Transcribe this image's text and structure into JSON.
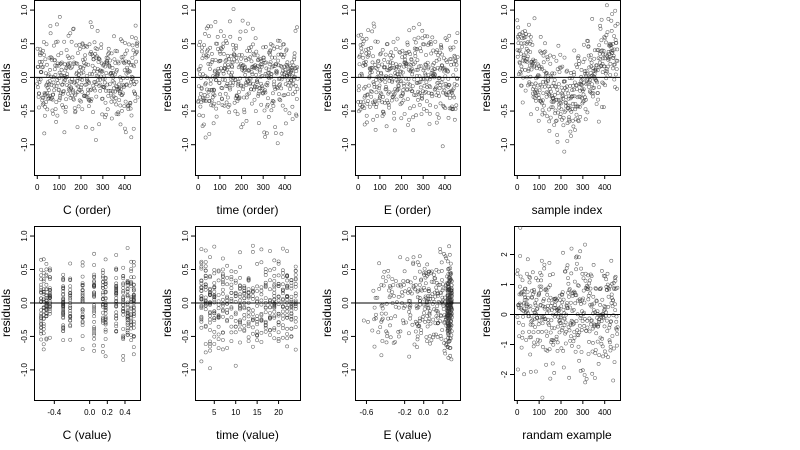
{
  "figure": {
    "layout": "2 rows x 4 columns of residual scatter plots"
  },
  "chart_data": [
    {
      "type": "scatter",
      "xlabel": "C (order)",
      "ylabel": "residuals",
      "xlim": [
        -15,
        470
      ],
      "ylim": [
        -1.45,
        1.15
      ],
      "xticks": [
        0,
        100,
        200,
        300,
        400
      ],
      "xtick_labels": [
        "0",
        "100",
        "200",
        "300",
        "400"
      ],
      "yticks": [
        -1.0,
        -0.5,
        0.0,
        0.5,
        1.0
      ],
      "ytick_labels": [
        "-1.0",
        "-0.5",
        "0.0",
        "0.5",
        "1.0"
      ],
      "hline": 0,
      "points": {
        "generator": "index",
        "n": 460,
        "pattern": "uniform",
        "seed": 11
      }
    },
    {
      "type": "scatter",
      "xlabel": "time (order)",
      "ylabel": "residuals",
      "xlim": [
        -15,
        470
      ],
      "ylim": [
        -1.45,
        1.15
      ],
      "xticks": [
        0,
        100,
        200,
        300,
        400
      ],
      "xtick_labels": [
        "0",
        "100",
        "200",
        "300",
        "400"
      ],
      "yticks": [
        -1.0,
        -0.5,
        0.0,
        0.5,
        1.0
      ],
      "ytick_labels": [
        "-1.0",
        "-0.5",
        "0.0",
        "0.5",
        "1.0"
      ],
      "hline": 0,
      "points": {
        "generator": "index",
        "n": 460,
        "pattern": "uniform",
        "seed": 23
      }
    },
    {
      "type": "scatter",
      "xlabel": "E (order)",
      "ylabel": "residuals",
      "xlim": [
        -15,
        470
      ],
      "ylim": [
        -1.45,
        1.15
      ],
      "xticks": [
        0,
        100,
        200,
        300,
        400
      ],
      "xtick_labels": [
        "0",
        "100",
        "200",
        "300",
        "400"
      ],
      "yticks": [
        -1.0,
        -0.5,
        0.0,
        0.5,
        1.0
      ],
      "ytick_labels": [
        "-1.0",
        "-0.5",
        "0.0",
        "0.5",
        "1.0"
      ],
      "hline": 0,
      "points": {
        "generator": "index",
        "n": 460,
        "pattern": "uniform",
        "seed": 37
      }
    },
    {
      "type": "scatter",
      "xlabel": "sample index",
      "ylabel": "residuals",
      "xlim": [
        -15,
        470
      ],
      "ylim": [
        -1.45,
        1.15
      ],
      "xticks": [
        0,
        100,
        200,
        300,
        400
      ],
      "xtick_labels": [
        "0",
        "100",
        "200",
        "300",
        "400"
      ],
      "yticks": [
        -1.0,
        -0.5,
        0.0,
        0.5,
        1.0
      ],
      "ytick_labels": [
        "-1.0",
        "-0.5",
        "0.0",
        "0.5",
        "1.0"
      ],
      "hline": 0,
      "points": {
        "generator": "index",
        "n": 460,
        "pattern": "trend",
        "seed": 41
      }
    },
    {
      "type": "scatter",
      "xlabel": "C (value)",
      "ylabel": "residuals",
      "xlim": [
        -0.63,
        0.57
      ],
      "ylim": [
        -1.45,
        1.15
      ],
      "xticks": [
        -0.4,
        0.0,
        0.2,
        0.4
      ],
      "xtick_labels": [
        "-0.4",
        "0.0",
        "0.2",
        "0.4"
      ],
      "yticks": [
        -1.0,
        -0.5,
        0.0,
        0.5,
        1.0
      ],
      "ytick_labels": [
        "-1.0",
        "-0.5",
        "0.0",
        "0.5",
        "1.0"
      ],
      "hline": 0,
      "points": {
        "generator": "columns",
        "n": 460,
        "seed": 53,
        "levels": [
          -0.55,
          -0.52,
          -0.49,
          -0.45,
          -0.3,
          -0.22,
          -0.08,
          0.05,
          0.15,
          0.18,
          0.3,
          0.38,
          0.43,
          0.47,
          0.5
        ]
      }
    },
    {
      "type": "scatter",
      "xlabel": "time (value)",
      "ylabel": "residuals",
      "xlim": [
        0.5,
        25
      ],
      "ylim": [
        -1.45,
        1.15
      ],
      "xticks": [
        5,
        10,
        15,
        20
      ],
      "xtick_labels": [
        "5",
        "10",
        "15",
        "20"
      ],
      "yticks": [
        -1.0,
        -0.5,
        0.0,
        0.5,
        1.0
      ],
      "ytick_labels": [
        "-1.0",
        "-0.5",
        "0.0",
        "0.5",
        "1.0"
      ],
      "hline": 0,
      "points": {
        "generator": "columns",
        "n": 460,
        "seed": 67,
        "levels": [
          2,
          3,
          4,
          5,
          6,
          7,
          8,
          9,
          10,
          11,
          12,
          13,
          14,
          15,
          16,
          17,
          18,
          19,
          20,
          21,
          22,
          23,
          24
        ]
      }
    },
    {
      "type": "scatter",
      "xlabel": "E (value)",
      "ylabel": "residuals",
      "xlim": [
        -0.72,
        0.38
      ],
      "ylim": [
        -1.45,
        1.15
      ],
      "xticks": [
        -0.6,
        -0.2,
        0.0,
        0.2
      ],
      "xtick_labels": [
        "-0.6",
        "-0.2",
        "0.0",
        "0.2"
      ],
      "yticks": [
        -1.0,
        -0.5,
        0.0,
        0.5,
        1.0
      ],
      "ytick_labels": [
        "-1.0",
        "-0.5",
        "0.0",
        "0.5",
        "1.0"
      ],
      "hline": 0,
      "points": {
        "generator": "skewed",
        "n": 460,
        "seed": 79
      }
    },
    {
      "type": "scatter",
      "xlabel": "randam example",
      "ylabel": "residuals",
      "xlim": [
        -15,
        470
      ],
      "ylim": [
        -2.85,
        2.95
      ],
      "xticks": [
        0,
        100,
        200,
        300,
        400
      ],
      "xtick_labels": [
        "0",
        "100",
        "200",
        "300",
        "400"
      ],
      "yticks": [
        -2,
        -1,
        0,
        1,
        2
      ],
      "ytick_labels": [
        "-2",
        "-1",
        "0",
        "1",
        "2"
      ],
      "hline": 0,
      "points": {
        "generator": "index",
        "n": 460,
        "pattern": "wide",
        "seed": 97
      }
    }
  ]
}
